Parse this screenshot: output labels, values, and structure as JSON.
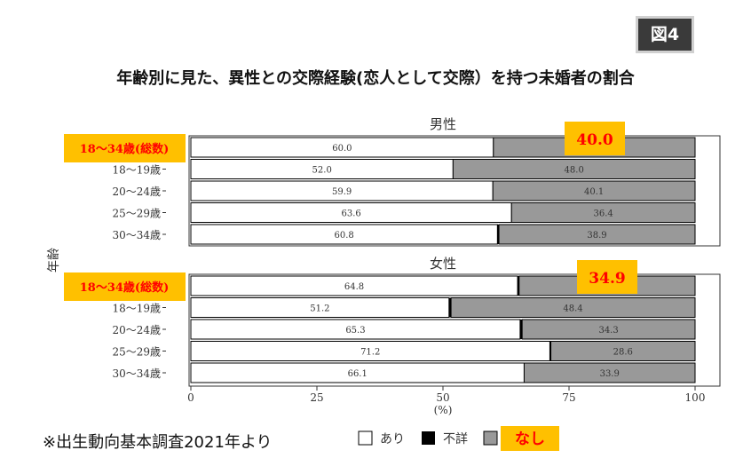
{
  "figure_label": "図4",
  "title": "年齢別に見た、異性との交際経験(恋人として交際）を持つ未婚者の割合",
  "source_note": "※出生動向基本調査2021年より",
  "colors": {
    "ari": "#ffffff",
    "fusho": "#000000",
    "nashi": "#999999",
    "highlight": "#ffc000",
    "highlight_text": "#ff0000"
  },
  "chart_data": {
    "type": "bar",
    "orientation": "horizontal",
    "stacked": true,
    "ylabel": "年齢",
    "xlabel": "(%)",
    "xlim": [
      0,
      100
    ],
    "xticks": [
      "0",
      "25",
      "50",
      "75",
      "100"
    ],
    "legend": {
      "position": "bottom",
      "items": [
        "あり",
        "不詳",
        "なし"
      ]
    },
    "panels": [
      {
        "title": "男性",
        "highlight_category": "18〜34歳(総数)",
        "highlight_value": "40.0",
        "rows": [
          {
            "category": "18〜34歳",
            "ari": 60.0,
            "fusho": 0.0,
            "nashi": 40.0,
            "ari_label": "60.0",
            "nashi_label": ""
          },
          {
            "category": "18〜19歳",
            "ari": 52.0,
            "fusho": 0.0,
            "nashi": 48.0,
            "ari_label": "52.0",
            "nashi_label": "48.0"
          },
          {
            "category": "20〜24歳",
            "ari": 59.9,
            "fusho": 0.0,
            "nashi": 40.1,
            "ari_label": "59.9",
            "nashi_label": "40.1"
          },
          {
            "category": "25〜29歳",
            "ari": 63.6,
            "fusho": 0.0,
            "nashi": 36.4,
            "ari_label": "63.6",
            "nashi_label": "36.4"
          },
          {
            "category": "30〜34歳",
            "ari": 60.8,
            "fusho": 0.3,
            "nashi": 38.9,
            "ari_label": "60.8",
            "nashi_label": "38.9"
          }
        ]
      },
      {
        "title": "女性",
        "highlight_category": "18〜34歳(総数)",
        "highlight_value": "34.9",
        "rows": [
          {
            "category": "18〜34歳",
            "ari": 64.8,
            "fusho": 0.3,
            "nashi": 34.9,
            "ari_label": "64.8",
            "nashi_label": ""
          },
          {
            "category": "18〜19歳",
            "ari": 51.2,
            "fusho": 0.4,
            "nashi": 48.4,
            "ari_label": "51.2",
            "nashi_label": "48.4"
          },
          {
            "category": "20〜24歳",
            "ari": 65.3,
            "fusho": 0.4,
            "nashi": 34.3,
            "ari_label": "65.3",
            "nashi_label": "34.3"
          },
          {
            "category": "25〜29歳",
            "ari": 71.2,
            "fusho": 0.2,
            "nashi": 28.6,
            "ari_label": "71.2",
            "nashi_label": "28.6"
          },
          {
            "category": "30〜34歳",
            "ari": 66.1,
            "fusho": 0.0,
            "nashi": 33.9,
            "ari_label": "66.1",
            "nashi_label": "33.9"
          }
        ]
      }
    ]
  }
}
